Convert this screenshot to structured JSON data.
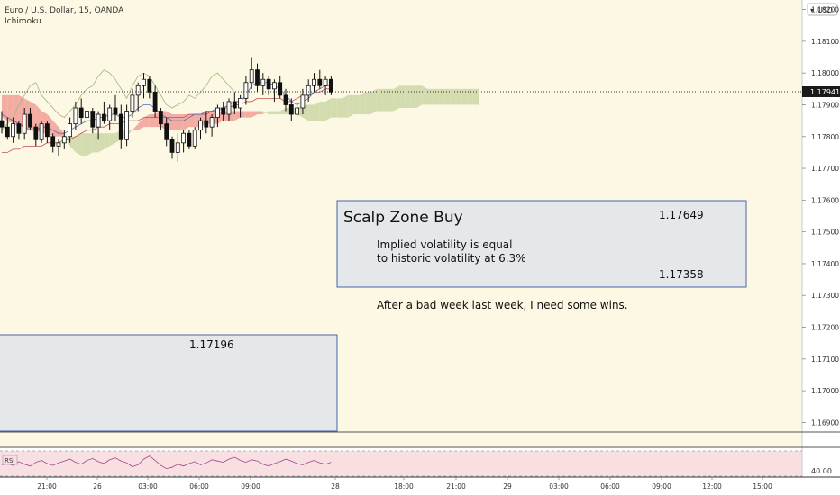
{
  "header": {
    "symbol_line": "Euro / U.S. Dollar, 15, OANDA",
    "indicator": "Ichimoku",
    "currency": "USD"
  },
  "colors": {
    "background": "#fdf8e3",
    "rsi_background": "#f7dfe2",
    "cloud_bear": "#f3aca1",
    "cloud_bull": "#d2dcaf",
    "chikou": "#9ab77a",
    "tenkan": "#4f68c9",
    "kijun": "#c0504f",
    "candle": "#111111",
    "rsi_line": "#a2478e",
    "box_fill": "#e4e8ea",
    "box_stroke": "#4565a8",
    "price_tag": "#1a1a1a"
  },
  "annotations": {
    "zone_title": "Scalp Zone Buy",
    "zone_top": "1.17649",
    "zone_line1": "Implied volatility is equal",
    "zone_line2": "to historic volatility at 6.3%",
    "zone_bottom": "1.17358",
    "note": "After a bad week last week, I need some wins.",
    "lower_box_label": "1.17196"
  },
  "rsi": {
    "label": "RSI",
    "axis_label": "40.00"
  },
  "chart_data": {
    "type": "candlestick",
    "ylim": [
      1.1687,
      1.1823
    ],
    "last_price": "1.17941",
    "y_ticks": [
      "1.18200",
      "1.18100",
      "1.18000",
      "1.17900",
      "1.17800",
      "1.17700",
      "1.17600",
      "1.17500",
      "1.17400",
      "1.17300",
      "1.17200",
      "1.17100",
      "1.17000",
      "1.16900"
    ],
    "x_ticks": [
      "21:00",
      "26",
      "03:00",
      "06:00",
      "09:00",
      "28",
      "18:00",
      "21:00",
      "29",
      "03:00",
      "06:00",
      "09:00",
      "12:00",
      "15:00"
    ],
    "candles": [
      [
        1.1785,
        1.1788,
        1.1781,
        1.1783
      ],
      [
        1.1783,
        1.1786,
        1.1779,
        1.178
      ],
      [
        1.178,
        1.1786,
        1.1778,
        1.1784
      ],
      [
        1.1784,
        1.1785,
        1.1779,
        1.1781
      ],
      [
        1.1781,
        1.1789,
        1.1779,
        1.1787
      ],
      [
        1.1787,
        1.1789,
        1.1782,
        1.1783
      ],
      [
        1.1783,
        1.1784,
        1.1777,
        1.1779
      ],
      [
        1.1779,
        1.1785,
        1.1778,
        1.1784
      ],
      [
        1.1784,
        1.1785,
        1.1778,
        1.178
      ],
      [
        1.178,
        1.1781,
        1.1775,
        1.1777
      ],
      [
        1.1777,
        1.1779,
        1.1774,
        1.1778
      ],
      [
        1.1778,
        1.1782,
        1.1776,
        1.178
      ],
      [
        1.178,
        1.1786,
        1.1778,
        1.1784
      ],
      [
        1.1784,
        1.1791,
        1.1782,
        1.1789
      ],
      [
        1.1789,
        1.1792,
        1.1784,
        1.1786
      ],
      [
        1.1786,
        1.179,
        1.1783,
        1.1788
      ],
      [
        1.1788,
        1.1789,
        1.1781,
        1.1783
      ],
      [
        1.1783,
        1.1788,
        1.1779,
        1.1787
      ],
      [
        1.1787,
        1.1791,
        1.1784,
        1.1785
      ],
      [
        1.1785,
        1.179,
        1.1782,
        1.1789
      ],
      [
        1.1789,
        1.1793,
        1.1785,
        1.1787
      ],
      [
        1.1787,
        1.179,
        1.1776,
        1.1779
      ],
      [
        1.1779,
        1.179,
        1.1777,
        1.1788
      ],
      [
        1.1788,
        1.1795,
        1.1786,
        1.1793
      ],
      [
        1.1793,
        1.1797,
        1.1788,
        1.1796
      ],
      [
        1.1796,
        1.18,
        1.1792,
        1.1798
      ],
      [
        1.1798,
        1.1799,
        1.1792,
        1.1794
      ],
      [
        1.1794,
        1.1796,
        1.1786,
        1.1788
      ],
      [
        1.1788,
        1.1789,
        1.1782,
        1.1784
      ],
      [
        1.1784,
        1.1786,
        1.1777,
        1.1779
      ],
      [
        1.1779,
        1.178,
        1.1773,
        1.1775
      ],
      [
        1.1775,
        1.1781,
        1.1772,
        1.1778
      ],
      [
        1.1778,
        1.1782,
        1.1775,
        1.1781
      ],
      [
        1.1781,
        1.1782,
        1.1776,
        1.1777
      ],
      [
        1.1777,
        1.1783,
        1.1776,
        1.1782
      ],
      [
        1.1782,
        1.1786,
        1.1779,
        1.1785
      ],
      [
        1.1785,
        1.1788,
        1.1781,
        1.1783
      ],
      [
        1.1783,
        1.1787,
        1.178,
        1.1786
      ],
      [
        1.1786,
        1.179,
        1.1783,
        1.1789
      ],
      [
        1.1789,
        1.1791,
        1.1785,
        1.1787
      ],
      [
        1.1787,
        1.1792,
        1.1785,
        1.1791
      ],
      [
        1.1791,
        1.1794,
        1.1787,
        1.1789
      ],
      [
        1.1789,
        1.1793,
        1.1786,
        1.1792
      ],
      [
        1.1792,
        1.1799,
        1.179,
        1.1797
      ],
      [
        1.1797,
        1.1805,
        1.1795,
        1.1801
      ],
      [
        1.1801,
        1.1803,
        1.1794,
        1.1796
      ],
      [
        1.1796,
        1.18,
        1.1793,
        1.1798
      ],
      [
        1.1798,
        1.1799,
        1.1793,
        1.1795
      ],
      [
        1.1795,
        1.1798,
        1.1791,
        1.1797
      ],
      [
        1.1797,
        1.1799,
        1.1792,
        1.1793
      ],
      [
        1.1793,
        1.1795,
        1.1788,
        1.179
      ],
      [
        1.179,
        1.1792,
        1.1785,
        1.1787
      ],
      [
        1.1787,
        1.1791,
        1.1786,
        1.1789
      ],
      [
        1.1789,
        1.1795,
        1.1787,
        1.1793
      ],
      [
        1.1793,
        1.1798,
        1.1791,
        1.1796
      ],
      [
        1.1796,
        1.18,
        1.1794,
        1.1798
      ],
      [
        1.1798,
        1.1801,
        1.1795,
        1.1796
      ],
      [
        1.1796,
        1.1799,
        1.1793,
        1.1798
      ],
      [
        1.1798,
        1.1799,
        1.1793,
        1.1794
      ]
    ],
    "tenkan_sen": [
      1.1787,
      1.1786,
      1.1785,
      1.1784,
      1.1783,
      1.1782,
      1.1782,
      1.1783,
      1.1783,
      1.1782,
      1.1781,
      1.1781,
      1.1782,
      1.1783,
      1.1784,
      1.1785,
      1.1785,
      1.1786,
      1.1786,
      1.1787,
      1.1787,
      1.1786,
      1.1786,
      1.1787,
      1.1789,
      1.179,
      1.179,
      1.1789,
      1.1787,
      1.1786,
      1.1785,
      1.1785,
      1.1785,
      1.1786,
      1.1787,
      1.1787,
      1.1788,
      1.1788,
      1.1789,
      1.1789,
      1.179,
      1.1791,
      1.1791,
      1.1793,
      1.1796,
      1.1797,
      1.1797,
      1.1797,
      1.1796,
      1.1795,
      1.1793,
      1.1791,
      1.179,
      1.1791,
      1.1792,
      1.1794,
      1.1795,
      1.1796,
      1.1796
    ],
    "tenkan_start": 0,
    "kijun_sen": [
      1.1775,
      1.1775,
      1.1776,
      1.1776,
      1.1777,
      1.1777,
      1.1777,
      1.1777,
      1.1778,
      1.1778,
      1.1778,
      1.1779,
      1.1779,
      1.178,
      1.1781,
      1.1782,
      1.1782,
      1.1783,
      1.1783,
      1.1784,
      1.1784,
      1.1784,
      1.1785,
      1.1785,
      1.1785,
      1.1786,
      1.1786,
      1.1786,
      1.1786,
      1.1786,
      1.1786,
      1.1786,
      1.1786,
      1.1787,
      1.1787,
      1.1787,
      1.1787,
      1.1788,
      1.1788,
      1.1789,
      1.1789,
      1.179,
      1.179,
      1.1791,
      1.1791,
      1.1792,
      1.1792,
      1.1792,
      1.1792,
      1.1792,
      1.1791,
      1.1791,
      1.1792,
      1.1793,
      1.1793,
      1.1794,
      1.1794,
      1.1795,
      1.1795
    ],
    "chikou_span": [
      1.1782,
      1.1784,
      1.1786,
      1.179,
      1.1793,
      1.1796,
      1.1797,
      1.1793,
      1.1791,
      1.1789,
      1.1787,
      1.1786,
      1.1788,
      1.179,
      1.1793,
      1.1795,
      1.1796,
      1.1799,
      1.1801,
      1.18,
      1.1798,
      1.1795,
      1.1792,
      1.1796,
      1.1799,
      1.18,
      1.1799,
      1.1796,
      1.1793,
      1.179,
      1.1789,
      1.179,
      1.1791,
      1.1793,
      1.1792,
      1.1794,
      1.1796,
      1.1799,
      1.18,
      1.1798,
      1.1796,
      1.1794
    ],
    "senkou_a": [
      1.1786,
      1.1785,
      1.1784,
      1.1783,
      1.1783,
      1.1782,
      1.1782,
      1.1781,
      1.1781,
      1.178,
      1.178,
      1.178,
      1.178,
      1.178,
      1.1781,
      1.1781,
      1.1781,
      1.1781,
      1.1781,
      1.1781,
      1.1781,
      1.1782,
      1.1782,
      1.1782,
      1.1782,
      1.1783,
      1.1783,
      1.1783,
      1.1783,
      1.1782,
      1.1782,
      1.1782,
      1.1782,
      1.1783,
      1.1783,
      1.1783,
      1.1784,
      1.1784,
      1.1784,
      1.1785,
      1.1785,
      1.1785,
      1.1786,
      1.1786,
      1.1786,
      1.1787,
      1.1787,
      1.1788,
      1.1788,
      1.1788,
      1.1789,
      1.1789,
      1.1789,
      1.179,
      1.179,
      1.179,
      1.1791,
      1.1791,
      1.1792,
      1.1792,
      1.1792,
      1.1793,
      1.1793,
      1.1793,
      1.1794,
      1.1794,
      1.1795,
      1.1795,
      1.1795,
      1.1795,
      1.1796,
      1.1796,
      1.1796,
      1.1796,
      1.1796,
      1.1795,
      1.1795,
      1.1795,
      1.1795,
      1.1795,
      1.1795,
      1.1795,
      1.1795,
      1.1795,
      1.1795
    ],
    "senkou_b": [
      1.1793,
      1.1793,
      1.1793,
      1.1793,
      1.1792,
      1.1791,
      1.179,
      1.1788,
      1.1787,
      1.1785,
      1.1783,
      1.1781,
      1.1777,
      1.1775,
      1.1774,
      1.1774,
      1.1775,
      1.1775,
      1.1776,
      1.1777,
      1.1778,
      1.1779,
      1.178,
      1.1782,
      1.1784,
      1.1786,
      1.1787,
      1.1787,
      1.1788,
      1.1788,
      1.1787,
      1.1787,
      1.1787,
      1.1787,
      1.1787,
      1.1787,
      1.1788,
      1.1788,
      1.1788,
      1.1788,
      1.1788,
      1.1788,
      1.1788,
      1.1788,
      1.1788,
      1.1788,
      1.1788,
      1.1787,
      1.1787,
      1.1787,
      1.1787,
      1.1787,
      1.1787,
      1.1786,
      1.1785,
      1.1785,
      1.1785,
      1.1785,
      1.1786,
      1.1786,
      1.1786,
      1.1786,
      1.1787,
      1.1787,
      1.1787,
      1.1787,
      1.1788,
      1.1788,
      1.1788,
      1.1788,
      1.1789,
      1.1789,
      1.1789,
      1.1789,
      1.179,
      1.179,
      1.179,
      1.179,
      1.179,
      1.179,
      1.179,
      1.179,
      1.179,
      1.179,
      1.179
    ],
    "rsi_values": [
      48,
      50,
      47,
      53,
      49,
      46,
      52,
      55,
      50,
      47,
      51,
      54,
      57,
      52,
      49,
      55,
      58,
      53,
      50,
      56,
      59,
      54,
      51,
      45,
      48,
      57,
      62,
      55,
      47,
      42,
      44,
      49,
      46,
      50,
      53,
      48,
      51,
      56,
      54,
      52,
      57,
      60,
      55,
      52,
      56,
      54,
      49,
      46,
      50,
      53,
      57,
      54,
      50,
      48,
      52,
      55,
      51,
      49,
      52
    ]
  }
}
